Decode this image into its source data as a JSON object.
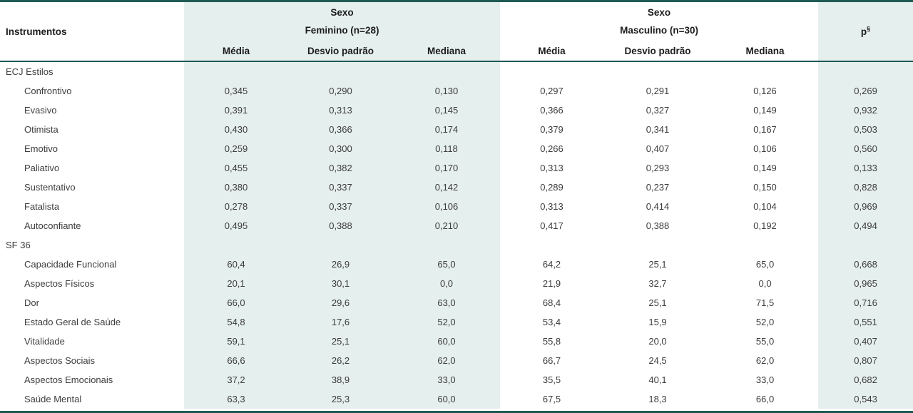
{
  "table": {
    "col0_header": "Instrumentos",
    "groups": [
      {
        "label": "Sexo",
        "sublabel": "Feminino (n=28)"
      },
      {
        "label": "Sexo",
        "sublabel": "Masculino (n=30)"
      }
    ],
    "stat_headers": [
      "Média",
      "Desvio padrão",
      "Mediana"
    ],
    "p_header": "p",
    "p_sup": "§",
    "sections": [
      {
        "title": "ECJ Estilos",
        "rows": [
          {
            "label": "Confrontivo",
            "f": [
              "0,345",
              "0,290",
              "0,130"
            ],
            "m": [
              "0,297",
              "0,291",
              "0,126"
            ],
            "p": "0,269"
          },
          {
            "label": "Evasivo",
            "f": [
              "0,391",
              "0,313",
              "0,145"
            ],
            "m": [
              "0,366",
              "0,327",
              "0,149"
            ],
            "p": "0,932"
          },
          {
            "label": "Otimista",
            "f": [
              "0,430",
              "0,366",
              "0,174"
            ],
            "m": [
              "0,379",
              "0,341",
              "0,167"
            ],
            "p": "0,503"
          },
          {
            "label": "Emotivo",
            "f": [
              "0,259",
              "0,300",
              "0,118"
            ],
            "m": [
              "0,266",
              "0,407",
              "0,106"
            ],
            "p": "0,560"
          },
          {
            "label": "Paliativo",
            "f": [
              "0,455",
              "0,382",
              "0,170"
            ],
            "m": [
              "0,313",
              "0,293",
              "0,149"
            ],
            "p": "0,133"
          },
          {
            "label": "Sustentativo",
            "f": [
              "0,380",
              "0,337",
              "0,142"
            ],
            "m": [
              "0,289",
              "0,237",
              "0,150"
            ],
            "p": "0,828"
          },
          {
            "label": "Fatalista",
            "f": [
              "0,278",
              "0,337",
              "0,106"
            ],
            "m": [
              "0,313",
              "0,414",
              "0,104"
            ],
            "p": "0,969"
          },
          {
            "label": "Autoconfiante",
            "f": [
              "0,495",
              "0,388",
              "0,210"
            ],
            "m": [
              "0,417",
              "0,388",
              "0,192"
            ],
            "p": "0,494"
          }
        ]
      },
      {
        "title": "SF 36",
        "rows": [
          {
            "label": "Capacidade Funcional",
            "f": [
              "60,4",
              "26,9",
              "65,0"
            ],
            "m": [
              "64,2",
              "25,1",
              "65,0"
            ],
            "p": "0,668"
          },
          {
            "label": "Aspectos Físicos",
            "f": [
              "20,1",
              "30,1",
              "0,0"
            ],
            "m": [
              "21,9",
              "32,7",
              "0,0"
            ],
            "p": "0,965"
          },
          {
            "label": "Dor",
            "f": [
              "66,0",
              "29,6",
              "63,0"
            ],
            "m": [
              "68,4",
              "25,1",
              "71,5"
            ],
            "p": "0,716"
          },
          {
            "label": "Estado Geral de Saúde",
            "f": [
              "54,8",
              "17,6",
              "52,0"
            ],
            "m": [
              "53,4",
              "15,9",
              "52,0"
            ],
            "p": "0,551"
          },
          {
            "label": "Vitalidade",
            "f": [
              "59,1",
              "25,1",
              "60,0"
            ],
            "m": [
              "55,8",
              "20,0",
              "55,0"
            ],
            "p": "0,407"
          },
          {
            "label": "Aspectos Sociais",
            "f": [
              "66,6",
              "26,2",
              "62,0"
            ],
            "m": [
              "66,7",
              "24,5",
              "62,0"
            ],
            "p": "0,807"
          },
          {
            "label": "Aspectos Emocionais",
            "f": [
              "37,2",
              "38,9",
              "33,0"
            ],
            "m": [
              "35,5",
              "40,1",
              "33,0"
            ],
            "p": "0,682"
          },
          {
            "label": "Saúde Mental",
            "f": [
              "63,3",
              "25,3",
              "60,0"
            ],
            "m": [
              "67,5",
              "18,3",
              "66,0"
            ],
            "p": "0,543"
          }
        ]
      }
    ]
  },
  "colors": {
    "accent_border": "#1e5a55",
    "group_fill": "#e5efed",
    "body_text": "#3d3d3d",
    "header_text": "#1c1c1c"
  }
}
